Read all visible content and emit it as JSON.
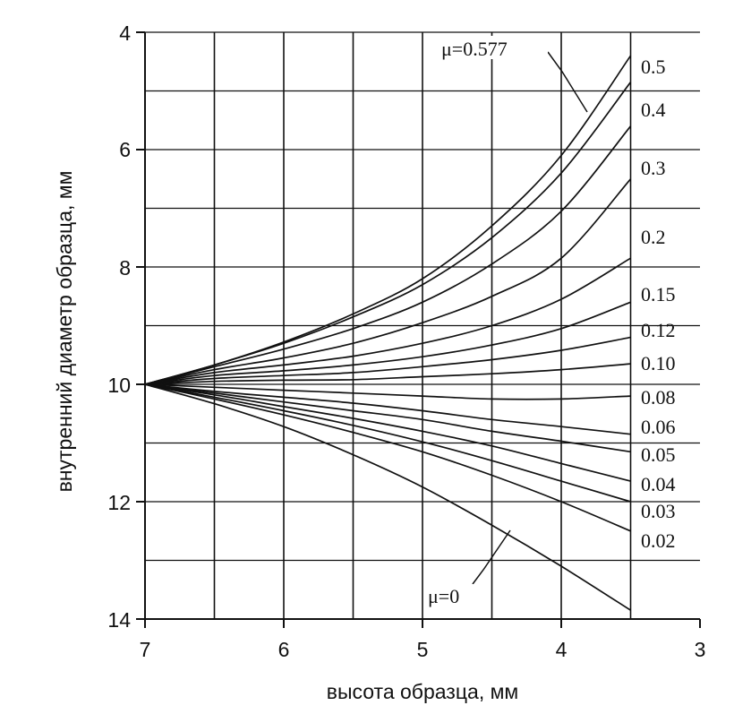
{
  "chart_data": {
    "type": "line",
    "xlabel": "высота образца, мм",
    "ylabel": "внутренний диаметр образца, мм",
    "xlim": [
      7,
      3
    ],
    "ylim": [
      4,
      14
    ],
    "x_reversed": true,
    "y_inverted": true,
    "x_ticks": [
      "7",
      "6",
      "5",
      "4",
      "3"
    ],
    "y_ticks": [
      "4",
      "6",
      "8",
      "10",
      "12",
      "14"
    ],
    "grid": true,
    "x_grid_values": [
      7,
      6.5,
      6,
      5.5,
      5,
      4.5,
      4,
      3.5
    ],
    "y_grid_values": [
      4,
      5,
      6,
      7,
      8,
      9,
      10,
      11,
      12,
      13,
      14
    ],
    "x": [
      7.0,
      6.5,
      6.0,
      5.5,
      5.0,
      4.5,
      4.0,
      3.5
    ],
    "series": [
      {
        "name": "μ=0.577",
        "values": [
          10.0,
          9.67,
          9.28,
          8.8,
          8.2,
          7.3,
          6.1,
          4.4
        ]
      },
      {
        "name": "0.5",
        "values": [
          10.0,
          9.67,
          9.3,
          8.85,
          8.3,
          7.5,
          6.4,
          4.85
        ]
      },
      {
        "name": "0.4",
        "values": [
          10.0,
          9.7,
          9.4,
          9.05,
          8.6,
          7.95,
          7.05,
          5.6
        ]
      },
      {
        "name": "0.3",
        "values": [
          10.0,
          9.75,
          9.55,
          9.3,
          8.95,
          8.5,
          7.85,
          6.5
        ]
      },
      {
        "name": "0.2",
        "values": [
          10.0,
          9.8,
          9.67,
          9.52,
          9.3,
          9.0,
          8.55,
          7.85
        ]
      },
      {
        "name": "0.15",
        "values": [
          10.0,
          9.85,
          9.77,
          9.67,
          9.53,
          9.33,
          9.05,
          8.6
        ]
      },
      {
        "name": "0.12",
        "values": [
          10.0,
          9.9,
          9.85,
          9.8,
          9.7,
          9.58,
          9.42,
          9.2
        ]
      },
      {
        "name": "0.10",
        "values": [
          10.0,
          9.95,
          9.93,
          9.92,
          9.87,
          9.82,
          9.75,
          9.65
        ]
      },
      {
        "name": "0.08",
        "values": [
          10.0,
          10.05,
          10.1,
          10.15,
          10.2,
          10.25,
          10.25,
          10.2
        ]
      },
      {
        "name": "0.06",
        "values": [
          10.0,
          10.12,
          10.22,
          10.32,
          10.45,
          10.6,
          10.72,
          10.85
        ]
      },
      {
        "name": "0.05",
        "values": [
          10.0,
          10.15,
          10.3,
          10.45,
          10.6,
          10.8,
          10.97,
          11.15
        ]
      },
      {
        "name": "0.04",
        "values": [
          10.0,
          10.18,
          10.38,
          10.58,
          10.8,
          11.05,
          11.35,
          11.65
        ]
      },
      {
        "name": "0.03",
        "values": [
          10.0,
          10.22,
          10.45,
          10.7,
          10.98,
          11.3,
          11.65,
          12.0
        ]
      },
      {
        "name": "0.02",
        "values": [
          10.0,
          10.25,
          10.52,
          10.82,
          11.15,
          11.55,
          12.0,
          12.5
        ]
      },
      {
        "name": "μ=0",
        "values": [
          10.0,
          10.33,
          10.72,
          11.2,
          11.75,
          12.4,
          13.1,
          13.85
        ]
      }
    ],
    "labels": {
      "top": "μ=0.577",
      "bottom": "μ=0",
      "right": [
        "0.5",
        "0.4",
        "0.3",
        "0.2",
        "0.15",
        "0.12",
        "0.10",
        "0.08",
        "0.06",
        "0.05",
        "0.04",
        "0.03",
        "0.02"
      ]
    }
  }
}
